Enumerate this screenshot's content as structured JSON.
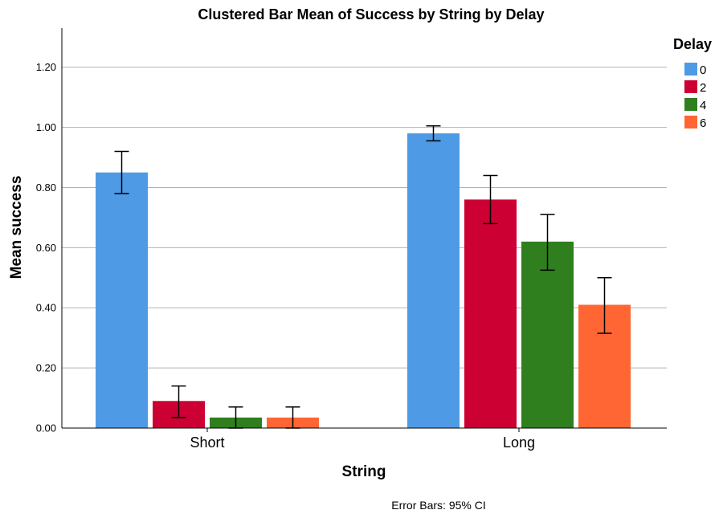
{
  "chart_data": {
    "type": "bar",
    "title": "Clustered Bar Mean of Success by String by Delay",
    "xlabel": "String",
    "ylabel": "Mean success",
    "categories": [
      "Short",
      "Long"
    ],
    "ylim": [
      0,
      1.33
    ],
    "yticks": [
      "0.00",
      "0.20",
      "0.40",
      "0.60",
      "0.80",
      "1.00",
      "1.20"
    ],
    "grid": true,
    "legend": {
      "title": "Delay",
      "position": "top-right"
    },
    "series": [
      {
        "name": "0",
        "color": "#4e9ae5",
        "values": [
          0.85,
          0.98
        ],
        "ci_low": [
          0.78,
          0.955
        ],
        "ci_high": [
          0.92,
          1.005
        ]
      },
      {
        "name": "2",
        "color": "#cc0033",
        "values": [
          0.09,
          0.76
        ],
        "ci_low": [
          0.035,
          0.68
        ],
        "ci_high": [
          0.14,
          0.84
        ]
      },
      {
        "name": "4",
        "color": "#2f7f1f",
        "values": [
          0.035,
          0.62
        ],
        "ci_low": [
          0.0,
          0.525
        ],
        "ci_high": [
          0.07,
          0.71
        ]
      },
      {
        "name": "6",
        "color": "#ff6633",
        "values": [
          0.035,
          0.41
        ],
        "ci_low": [
          0.0,
          0.315
        ],
        "ci_high": [
          0.07,
          0.5
        ]
      }
    ],
    "footnote": "Error Bars: 95% CI"
  }
}
